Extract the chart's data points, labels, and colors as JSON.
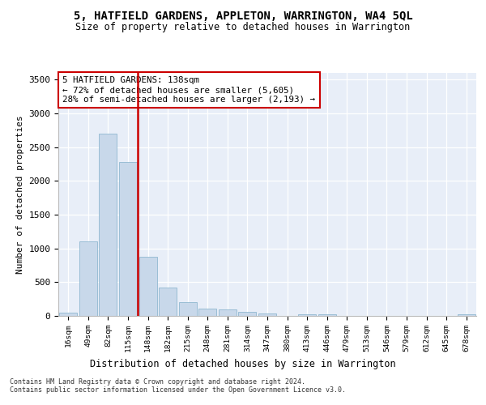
{
  "title": "5, HATFIELD GARDENS, APPLETON, WARRINGTON, WA4 5QL",
  "subtitle": "Size of property relative to detached houses in Warrington",
  "xlabel": "Distribution of detached houses by size in Warrington",
  "ylabel": "Number of detached properties",
  "bar_labels": [
    "16sqm",
    "49sqm",
    "82sqm",
    "115sqm",
    "148sqm",
    "182sqm",
    "215sqm",
    "248sqm",
    "281sqm",
    "314sqm",
    "347sqm",
    "380sqm",
    "413sqm",
    "446sqm",
    "479sqm",
    "513sqm",
    "546sqm",
    "579sqm",
    "612sqm",
    "645sqm",
    "678sqm"
  ],
  "bar_values": [
    50,
    1100,
    2700,
    2280,
    880,
    420,
    210,
    110,
    100,
    55,
    40,
    0,
    30,
    20,
    0,
    0,
    0,
    0,
    0,
    0,
    20
  ],
  "bar_color": "#c8d8ea",
  "bar_edge_color": "#90b8d0",
  "vline_color": "#cc0000",
  "vline_index": 3.5,
  "annotation_text": "5 HATFIELD GARDENS: 138sqm\n← 72% of detached houses are smaller (5,605)\n28% of semi-detached houses are larger (2,193) →",
  "annotation_box_color": "#ffffff",
  "annotation_box_edge": "#cc0000",
  "ylim": [
    0,
    3600
  ],
  "yticks": [
    0,
    500,
    1000,
    1500,
    2000,
    2500,
    3000,
    3500
  ],
  "footnote1": "Contains HM Land Registry data © Crown copyright and database right 2024.",
  "footnote2": "Contains public sector information licensed under the Open Government Licence v3.0.",
  "bg_color": "#ffffff",
  "plot_bg_color": "#e8eef8"
}
